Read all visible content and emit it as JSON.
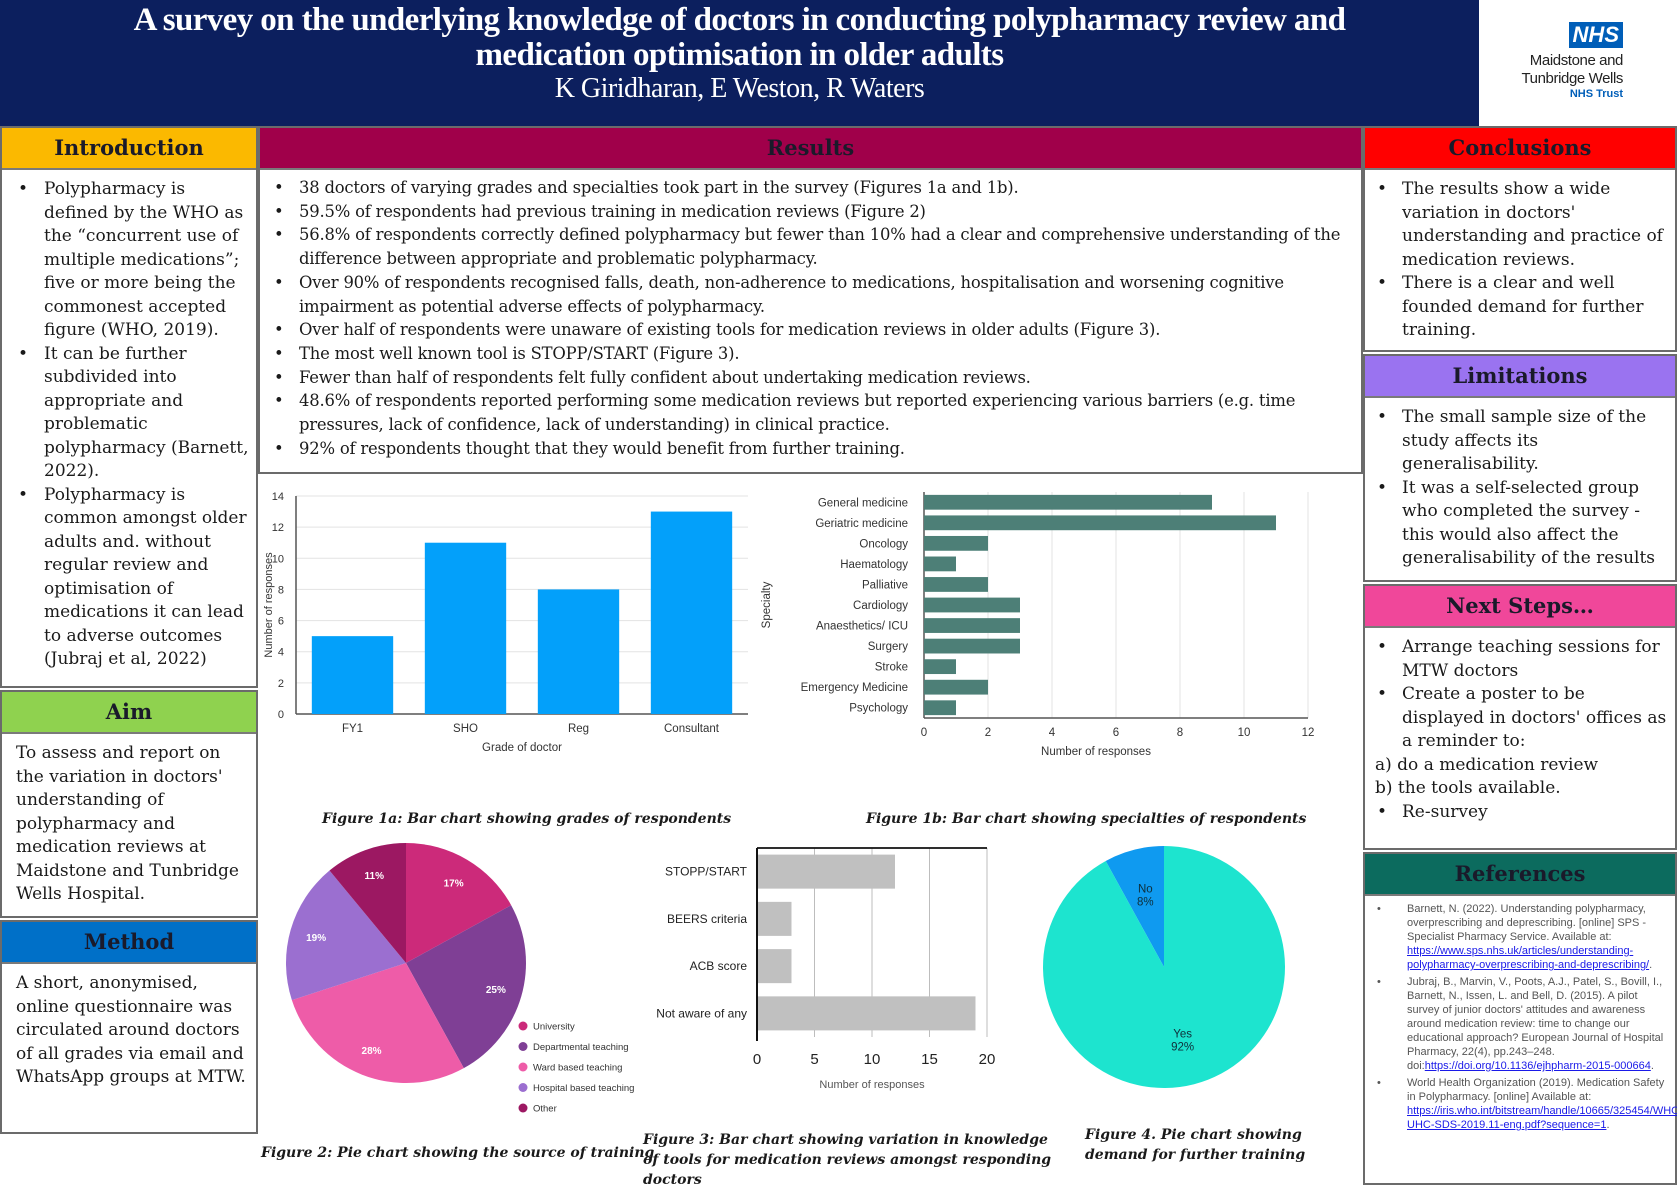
{
  "header": {
    "title_line1": "A survey on the underlying knowledge of doctors in conducting polypharmacy review and",
    "title_line2": "medication optimisation in older adults",
    "authors": "K Giridharan, E Weston, R Waters",
    "logo": {
      "badge": "NHS",
      "org_line1": "Maidstone and",
      "org_line2": "Tunbridge Wells",
      "trust": "NHS Trust"
    }
  },
  "colors": {
    "header_bg": "#0c1f5e",
    "introduction": "#fbb900",
    "aim": "#8fd24f",
    "method": "#0070c8",
    "results": "#a0004a",
    "conclusions": "#ff0000",
    "limitations": "#9a73f0",
    "next_steps": "#f0479a",
    "references": "#0c6b5e"
  },
  "introduction": {
    "heading": "Introduction",
    "bullets": [
      "Polypharmacy is defined by the WHO as the “concurrent use of multiple medications”; five or more being the commonest accepted figure (WHO, 2019).",
      "It can be further subdivided into appropriate and problematic polypharmacy (Barnett, 2022).",
      "Polypharmacy is common amongst older adults and. without regular review and optimisation of medications it can lead to adverse outcomes (Jubraj et al, 2022)"
    ]
  },
  "aim": {
    "heading": "Aim",
    "text": "To assess and report on the variation in doctors' understanding of polypharmacy and medication reviews at Maidstone and Tunbridge Wells Hospital."
  },
  "method": {
    "heading": "Method",
    "text": "A short, anonymised, online questionnaire was circulated around doctors of all grades via email and WhatsApp groups at MTW."
  },
  "results": {
    "heading": "Results",
    "bullets": [
      "38 doctors of varying grades and specialties took part in the survey (Figures 1a and 1b).",
      "59.5% of respondents had previous training in medication reviews (Figure 2)",
      "56.8% of respondents correctly defined polypharmacy but fewer than 10% had a clear and comprehensive understanding of the difference between appropriate and problematic polypharmacy.",
      "Over 90% of respondents recognised falls, death, non-adherence to medications, hospitalisation and worsening cognitive impairment as potential adverse effects of polypharmacy.",
      "Over half of respondents were unaware of existing tools for medication reviews in older adults (Figure 3).",
      "The most well known tool is STOPP/START (Figure 3).",
      "Fewer than half of respondents felt fully confident about undertaking medication reviews.",
      "48.6% of respondents reported performing some medication reviews but reported experiencing various barriers (e.g. time pressures, lack of confidence, lack of understanding) in clinical practice.",
      "92% of respondents thought that they would benefit from further training."
    ]
  },
  "conclusions": {
    "heading": "Conclusions",
    "bullets": [
      " The results show a wide variation in doctors' understanding and practice of medication reviews.",
      "There is a clear and well founded demand for further training."
    ]
  },
  "limitations": {
    "heading": "Limitations",
    "bullets": [
      "The small sample size of the study affects its generalisability.",
      "It was a self-selected group who completed the survey - this would also affect the generalisability of the results"
    ]
  },
  "next_steps": {
    "heading": "Next Steps…",
    "bullet1": " Arrange teaching sessions for MTW doctors",
    "bullet2": "Create a poster to be displayed in doctors' offices as a reminder to:",
    "sub_a": "a) do a medication review",
    "sub_b": "b) the tools available.",
    "bullet3": "Re-survey"
  },
  "references": {
    "heading": "References",
    "items": [
      {
        "text": "Barnett, N. (2022). Understanding polypharmacy, overprescribing and deprescribing. [online] SPS - Specialist Pharmacy Service. Available at: ",
        "link": "https://www.sps.nhs.uk/articles/understanding-polypharmacy-overprescribing-and-deprescribing/",
        "tail": "."
      },
      {
        "text": "Jubraj, B., Marvin, V., Poots, A.J., Patel, S., Bovill, I., Barnett, N., Issen, L. and Bell, D. (2015). A pilot survey of junior doctors' attitudes and awareness around medication review: time to change our educational approach? European Journal of Hospital Pharmacy, 22(4), pp.243–248. doi:",
        "link": "https://doi.org/10.1136/ejhpharm-2015-000664",
        "tail": "."
      },
      {
        "text": "World Health Organization (2019). Medication Safety in Polypharmacy. [online] Available at: ",
        "link": "https://iris.who.int/bitstream/handle/10665/325454/WHO-UHC-SDS-2019.11-eng.pdf?sequence=1",
        "tail": "."
      }
    ]
  },
  "chart_data": [
    {
      "id": "fig1a",
      "type": "bar",
      "title": "Figure 1a: Bar chart showing grades of respondents",
      "categories": [
        "FY1",
        "SHO",
        "Reg",
        "Consultant"
      ],
      "values": [
        5,
        11,
        8,
        13
      ],
      "xlabel": "Grade of doctor",
      "ylabel": "Number of responses",
      "ylim": [
        0,
        14
      ],
      "yticks": [
        0,
        2,
        4,
        6,
        8,
        10,
        12,
        14
      ],
      "grid": true,
      "color": "#03a0fa"
    },
    {
      "id": "fig1b",
      "type": "bar",
      "orientation": "horizontal",
      "title": "Figure 1b: Bar chart showing specialties of respondents",
      "categories": [
        "General medicine",
        "Geriatric medicine",
        "Oncology",
        "Haematology",
        "Palliative",
        "Cardiology",
        "Anaesthetics/ ICU",
        "Surgery",
        "Stroke",
        "Emergency Medicine",
        "Psychology"
      ],
      "values": [
        9,
        11,
        2,
        1,
        2,
        3,
        3,
        3,
        1,
        2,
        1
      ],
      "xlabel": "Number of responses",
      "ylabel": "Specialty",
      "xlim": [
        0,
        12
      ],
      "xticks": [
        0,
        2,
        4,
        6,
        8,
        10,
        12
      ],
      "grid": true,
      "color": "#4d7f77"
    },
    {
      "id": "fig2",
      "type": "pie",
      "title": "Figure 2:  Pie chart showing the source of training",
      "labels": [
        "University",
        "Departmental teaching",
        "Ward based teaching",
        "Hospital based teaching",
        "Other"
      ],
      "values": [
        17,
        25,
        28,
        19,
        11
      ],
      "value_labels": [
        "17%",
        "25%",
        "28%",
        "19%",
        "11%"
      ],
      "colors": [
        "#cc2a7a",
        "#7f3f95",
        "#ee5ca8",
        "#9b6fd0",
        "#9c1862"
      ],
      "legend": "right"
    },
    {
      "id": "fig3",
      "type": "bar",
      "orientation": "horizontal",
      "title": "Figure 3: Bar chart showing variation in knowledge of tools for medication reviews amongst responding doctors",
      "categories": [
        "STOPP/START",
        "BEERS criteria",
        "ACB score",
        "Not aware of any"
      ],
      "values": [
        12,
        3,
        3,
        19
      ],
      "xlabel": "Number of responses",
      "xlim": [
        0,
        20
      ],
      "xticks": [
        0,
        5,
        10,
        15,
        20
      ],
      "grid": true,
      "color": "#c0c0c0"
    },
    {
      "id": "fig4",
      "type": "pie",
      "title": "Figure 4. Pie chart showing demand for further training",
      "labels": [
        "No",
        "Yes"
      ],
      "values": [
        8,
        92
      ],
      "value_labels": [
        "8%",
        "92%"
      ],
      "colors": [
        "#0f9af0",
        "#1de4cf"
      ]
    }
  ]
}
